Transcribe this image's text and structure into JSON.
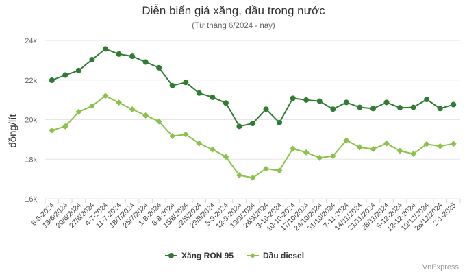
{
  "chart_data": {
    "type": "line",
    "title": "Diễn biến giá xăng, dầu trong nước",
    "subtitle": "(Từ tháng 6/2024 - nay)",
    "ylabel": "đồng/lít",
    "xlabel": "",
    "ylim": [
      16000,
      24000
    ],
    "yticks": [
      "16k",
      "18k",
      "20k",
      "22k",
      "24k"
    ],
    "grid": true,
    "legend_position": "bottom",
    "categories": [
      "6-6-2024",
      "13/6/2024",
      "20/6/2024",
      "27/6/2024",
      "4-7-2024",
      "11-7-2024",
      "18/7/2024",
      "25/7/2024",
      "1-8-2024",
      "8-8-2024",
      "15/8/2024",
      "22/8/2024",
      "29/8/2024",
      "5-9-2024",
      "12-9-2024",
      "19/9/2024",
      "26/9/2024",
      "3-10-2024",
      "10-10-2024",
      "17/10/2024",
      "24/10/2024",
      "31/10/2024",
      "7-11-2024",
      "14/11/2024",
      "21/11/2024",
      "28/11/2024",
      "5-12-2024",
      "12-12-2024",
      "19/12/2024",
      "26/12/2024",
      "2-1-2025"
    ],
    "series": [
      {
        "name": "Xăng RON 95",
        "color": "#2e7d32",
        "values": [
          21990,
          22250,
          22480,
          23030,
          23570,
          23310,
          23200,
          22910,
          22620,
          21720,
          21880,
          21340,
          21130,
          20840,
          19660,
          19810,
          20530,
          19850,
          21080,
          20990,
          20930,
          20530,
          20870,
          20620,
          20560,
          20870,
          20600,
          20620,
          21020,
          20560,
          20760
        ]
      },
      {
        "name": "Dầu diesel",
        "color": "#8bc34a",
        "values": [
          19460,
          19660,
          20390,
          20690,
          21200,
          20860,
          20520,
          20210,
          19910,
          19170,
          19250,
          18800,
          18490,
          18120,
          17190,
          17060,
          17520,
          17430,
          18530,
          18340,
          18070,
          18160,
          18950,
          18600,
          18510,
          18800,
          18420,
          18270,
          18760,
          18660,
          18780
        ]
      }
    ]
  },
  "footer": {
    "credit": "VnExpress"
  }
}
